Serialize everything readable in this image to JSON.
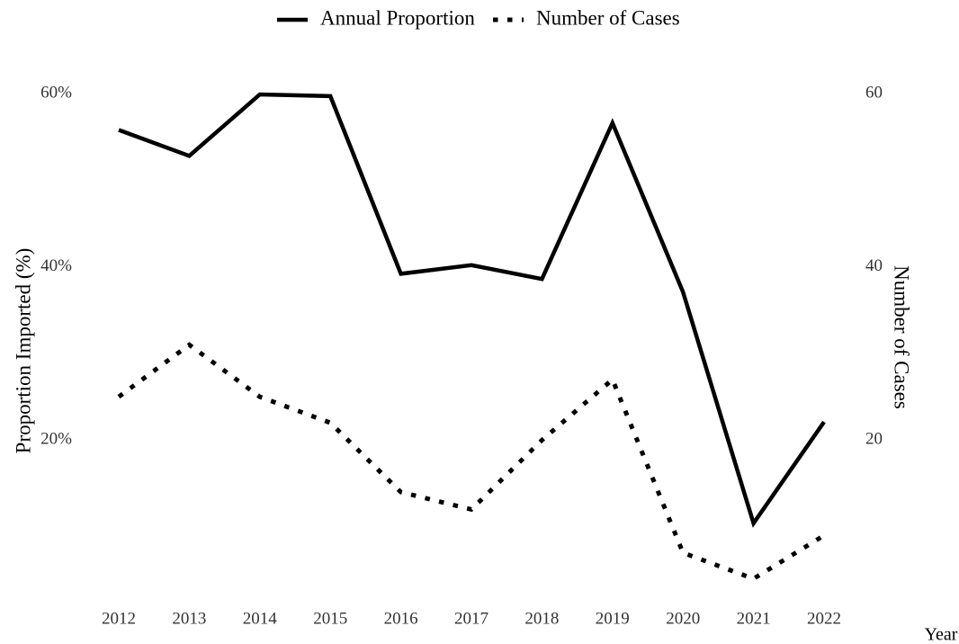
{
  "chart_data": {
    "type": "line",
    "xlabel": "Year",
    "ylabel": "Proportion Imported (%)",
    "y2label": "Number of Cases",
    "categories": [
      "2012",
      "2013",
      "2014",
      "2015",
      "2016",
      "2017",
      "2018",
      "2019",
      "2020",
      "2021",
      "2022"
    ],
    "series": [
      {
        "name": "Annual Proportion",
        "color": "#000000",
        "style": "solid",
        "values": [
          55.8,
          52.8,
          59.9,
          59.7,
          39.2,
          40.2,
          38.6,
          56.6,
          37.1,
          10.4,
          22.1
        ]
      },
      {
        "name": "Number of Cases",
        "color": "#000000",
        "style": "dotted",
        "axis": "y2",
        "values": [
          25,
          31,
          25,
          22,
          14,
          12,
          20,
          27,
          7,
          4,
          9
        ]
      }
    ],
    "ylim": [
      0,
      60
    ],
    "yticks": [
      {
        "value": 20,
        "label": "20%"
      },
      {
        "value": 40,
        "label": "40%"
      },
      {
        "value": 60,
        "label": "60%"
      }
    ],
    "y2lim": [
      0,
      60
    ],
    "y2ticks": [
      20,
      40,
      60
    ],
    "legend": "top",
    "grid": false
  }
}
